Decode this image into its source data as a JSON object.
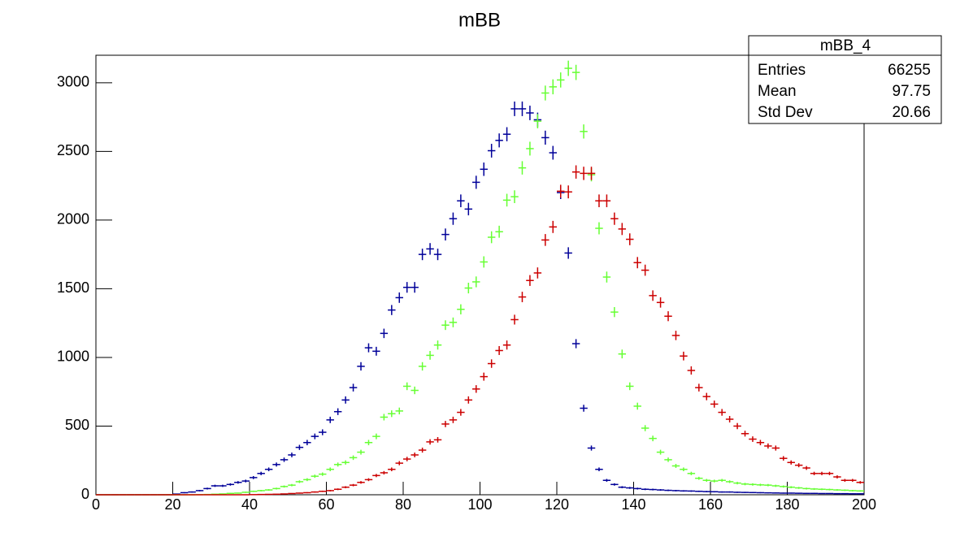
{
  "chart_data": {
    "type": "histogram",
    "title": "mBB",
    "bins": [
      0,
      2,
      4,
      6,
      8,
      10,
      12,
      14,
      16,
      18,
      20,
      22,
      24,
      26,
      28,
      30,
      32,
      34,
      36,
      38,
      40,
      42,
      44,
      46,
      48,
      50,
      52,
      54,
      56,
      58,
      60,
      62,
      64,
      66,
      68,
      70,
      72,
      74,
      76,
      78,
      80,
      82,
      84,
      86,
      88,
      90,
      92,
      94,
      96,
      98,
      100,
      102,
      104,
      106,
      108,
      110,
      112,
      114,
      116,
      118,
      120,
      122,
      124,
      126,
      128,
      130,
      132,
      134,
      136,
      138,
      140,
      142,
      144,
      146,
      148,
      150,
      152,
      154,
      156,
      158,
      160,
      162,
      164,
      166,
      168,
      170,
      172,
      174,
      176,
      178,
      180,
      182,
      184,
      186,
      188,
      190,
      192,
      194,
      196,
      198,
      200
    ],
    "series": [
      {
        "color": "#000099",
        "values": [
          0,
          0,
          0,
          0,
          0,
          0,
          0,
          0,
          0,
          0,
          5,
          15,
          20,
          30,
          45,
          65,
          65,
          75,
          90,
          100,
          125,
          155,
          185,
          220,
          255,
          290,
          345,
          380,
          425,
          455,
          545,
          605,
          690,
          780,
          935,
          1070,
          1045,
          1175,
          1345,
          1435,
          1510,
          1510,
          1750,
          1790,
          1750,
          1895,
          2010,
          2140,
          2080,
          2275,
          2370,
          2505,
          2580,
          2625,
          2810,
          2810,
          2780,
          2730,
          2600,
          2490,
          2200,
          1760,
          1100,
          630,
          340,
          185,
          105,
          75,
          55,
          50,
          45,
          40,
          38,
          35,
          32,
          30,
          28,
          27,
          25,
          23,
          22,
          20,
          20,
          18,
          17,
          16,
          15,
          14,
          13,
          12,
          12,
          11,
          10,
          10,
          9,
          9,
          8,
          8,
          7,
          7
        ]
      },
      {
        "color": "#66ff33",
        "values": [
          0,
          0,
          0,
          0,
          0,
          0,
          0,
          0,
          0,
          0,
          0,
          0,
          0,
          1,
          2,
          4,
          6,
          10,
          12,
          18,
          25,
          30,
          35,
          45,
          60,
          70,
          95,
          110,
          135,
          150,
          185,
          220,
          235,
          270,
          310,
          380,
          425,
          565,
          590,
          610,
          790,
          760,
          935,
          1015,
          1090,
          1235,
          1255,
          1350,
          1505,
          1550,
          1695,
          1875,
          1915,
          2145,
          2170,
          2380,
          2520,
          2720,
          2925,
          2970,
          3020,
          3105,
          3075,
          2645,
          2330,
          1940,
          1585,
          1330,
          1025,
          790,
          645,
          485,
          410,
          310,
          255,
          210,
          185,
          155,
          120,
          105,
          100,
          105,
          95,
          85,
          78,
          75,
          72,
          70,
          65,
          60,
          55,
          50,
          45,
          42,
          40,
          38,
          35,
          33,
          30,
          28
        ]
      },
      {
        "color": "#cc0000",
        "values": [
          0,
          0,
          0,
          0,
          0,
          0,
          0,
          0,
          0,
          0,
          0,
          0,
          0,
          0,
          0,
          0,
          0,
          0,
          0,
          0,
          1,
          2,
          3,
          4,
          6,
          9,
          12,
          15,
          20,
          25,
          30,
          40,
          55,
          70,
          90,
          110,
          140,
          160,
          185,
          230,
          260,
          290,
          325,
          385,
          400,
          515,
          545,
          600,
          690,
          770,
          860,
          955,
          1050,
          1090,
          1275,
          1440,
          1560,
          1615,
          1855,
          1950,
          2210,
          2205,
          2350,
          2340,
          2340,
          2140,
          2140,
          2010,
          1935,
          1860,
          1690,
          1635,
          1450,
          1400,
          1300,
          1160,
          1010,
          905,
          780,
          715,
          660,
          600,
          550,
          500,
          445,
          405,
          380,
          355,
          340,
          265,
          235,
          215,
          195,
          155,
          155,
          155,
          130,
          105,
          105,
          90
        ]
      }
    ],
    "xlim": [
      0,
      200
    ],
    "xticks": [
      0,
      20,
      40,
      60,
      80,
      100,
      120,
      140,
      160,
      180,
      200
    ],
    "ylim": [
      0,
      3200
    ],
    "yticks": [
      0,
      500,
      1000,
      1500,
      2000,
      2500,
      3000
    ],
    "stats": {
      "title": "mBB_4",
      "rows": [
        [
          "Entries",
          66255
        ],
        [
          "Mean",
          97.75
        ],
        [
          "Std Dev",
          20.66
        ]
      ]
    }
  }
}
